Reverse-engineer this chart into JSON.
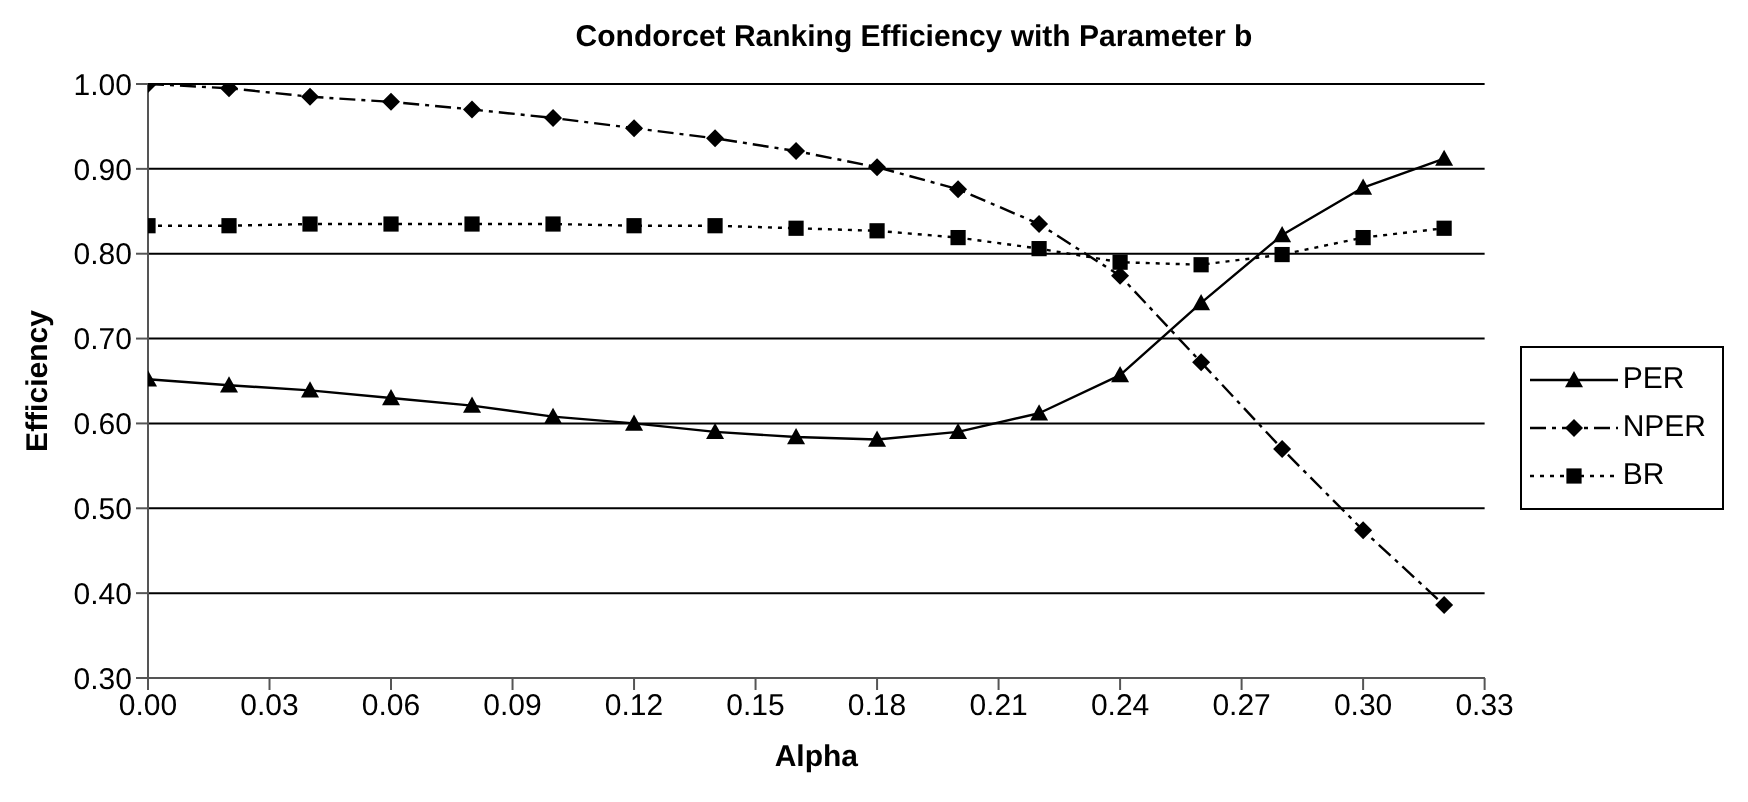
{
  "chart_data": {
    "type": "line",
    "title": "Condorcet Ranking Efficiency with Parameter b",
    "xlabel": "Alpha",
    "ylabel": "Efficiency",
    "x": [
      0,
      0.02,
      0.04,
      0.06,
      0.08,
      0.1,
      0.12,
      0.14,
      0.16,
      0.18,
      0.2,
      0.22,
      0.24,
      0.26,
      0.28,
      0.3,
      0.32
    ],
    "series": [
      {
        "name": "PER",
        "color": "#000000",
        "marker": "triangle",
        "line_style": "solid",
        "values": [
          0.652,
          0.645,
          0.639,
          0.63,
          0.621,
          0.608,
          0.6,
          0.59,
          0.584,
          0.581,
          0.59,
          0.612,
          0.657,
          0.742,
          0.822,
          0.878,
          0.912
        ]
      },
      {
        "name": "NPER",
        "color": "#000000",
        "marker": "diamond",
        "line_style": "dashed",
        "values": [
          1.0,
          0.995,
          0.985,
          0.979,
          0.97,
          0.96,
          0.948,
          0.936,
          0.921,
          0.902,
          0.876,
          0.835,
          0.774,
          0.672,
          0.57,
          0.474,
          0.386
        ]
      },
      {
        "name": "BR",
        "color": "#000000",
        "marker": "square",
        "line_style": "dotted",
        "values": [
          0.833,
          0.833,
          0.835,
          0.835,
          0.835,
          0.835,
          0.833,
          0.833,
          0.83,
          0.827,
          0.819,
          0.806,
          0.79,
          0.787,
          0.799,
          0.819,
          0.83
        ]
      }
    ],
    "xlim": [
      0,
      0.33
    ],
    "xticks": [
      {
        "value": 0,
        "label": "0.00"
      },
      {
        "value": 0.03,
        "label": "0.03"
      },
      {
        "value": 0.06,
        "label": "0.06"
      },
      {
        "value": 0.09,
        "label": "0.09"
      },
      {
        "value": 0.12,
        "label": "0.12"
      },
      {
        "value": 0.15,
        "label": "0.15"
      },
      {
        "value": 0.18,
        "label": "0.18"
      },
      {
        "value": 0.21,
        "label": "0.21"
      },
      {
        "value": 0.24,
        "label": "0.24"
      },
      {
        "value": 0.27,
        "label": "0.27"
      },
      {
        "value": 0.3,
        "label": "0.30"
      },
      {
        "value": 0.33,
        "label": "0.33"
      }
    ],
    "ylim": [
      0.3,
      1.0
    ],
    "yticks": [
      {
        "value": 0.3,
        "label": "0.30"
      },
      {
        "value": 0.4,
        "label": "0.40"
      },
      {
        "value": 0.5,
        "label": "0.50"
      },
      {
        "value": 0.6,
        "label": "0.60"
      },
      {
        "value": 0.7,
        "label": "0.70"
      },
      {
        "value": 0.8,
        "label": "0.80"
      },
      {
        "value": 0.9,
        "label": "0.90"
      },
      {
        "value": 1.0,
        "label": "1.00"
      }
    ],
    "grid": "y",
    "legend": "right"
  }
}
